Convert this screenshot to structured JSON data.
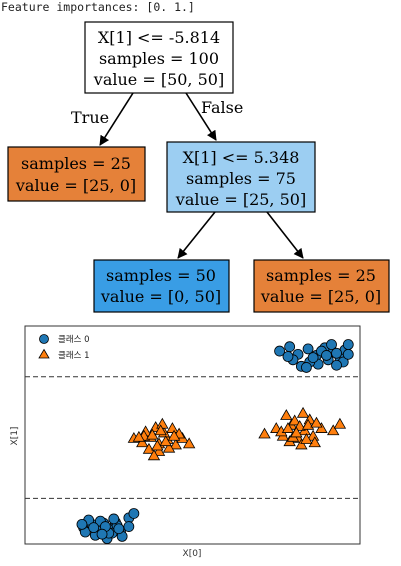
{
  "console": {
    "output_line": "Feature importances: [0. 1.]"
  },
  "tree": {
    "root": {
      "lines": [
        "X[1] <= -5.814",
        "samples = 100",
        "value = [50, 50]"
      ],
      "color": "#ffffff"
    },
    "left_leaf": {
      "lines": [
        "samples = 25",
        "value = [25, 0]"
      ],
      "color": "#e58139"
    },
    "right_node": {
      "lines": [
        "X[1] <= 5.348",
        "samples = 75",
        "value = [25, 50]"
      ],
      "color": "#9ccef2"
    },
    "right_left_leaf": {
      "lines": [
        "samples = 50",
        "value = [0, 50]"
      ],
      "color": "#399de5"
    },
    "right_right_leaf": {
      "lines": [
        "samples = 25",
        "value = [25, 0]"
      ],
      "color": "#e58139"
    },
    "edge_true_label": "True",
    "edge_false_label": "False"
  },
  "scatter": {
    "xlabel": "X[0]",
    "ylabel": "X[1]",
    "legend": [
      {
        "label": "클래스 0",
        "marker": "circle",
        "color": "#1f77b4"
      },
      {
        "label": "클래스 1",
        "marker": "triangle",
        "color": "#ff7f0e"
      }
    ],
    "split_lines_y": [
      -5.814,
      5.348
    ],
    "xlim": [
      -10,
      10
    ],
    "ylim": [
      -10,
      10
    ]
  },
  "chart_data": {
    "type": "scatter",
    "title": "",
    "xlabel": "X[0]",
    "ylabel": "X[1]",
    "xlim": [
      -10,
      10
    ],
    "ylim": [
      -10,
      10
    ],
    "grid": false,
    "legend_position": "top-left",
    "series": [
      {
        "name": "클래스 0",
        "color": "#1f77b4",
        "marker": "circle",
        "points": [
          [
            -6.5,
            -8.5
          ],
          [
            -6.0,
            -8.2
          ],
          [
            -5.6,
            -8.8
          ],
          [
            -5.3,
            -8.1
          ],
          [
            -4.9,
            -8.6
          ],
          [
            -4.6,
            -8.0
          ],
          [
            -4.3,
            -8.9
          ],
          [
            -6.2,
            -7.8
          ],
          [
            -5.8,
            -9.2
          ],
          [
            -5.1,
            -9.5
          ],
          [
            -4.8,
            -9.0
          ],
          [
            -4.5,
            -8.3
          ],
          [
            -5.5,
            -7.9
          ],
          [
            -6.4,
            -8.9
          ],
          [
            -3.8,
            -7.6
          ],
          [
            -3.5,
            -7.2
          ],
          [
            -3.8,
            -8.4
          ],
          [
            -4.2,
            -9.3
          ],
          [
            -5.0,
            -9.0
          ],
          [
            -5.9,
            -8.5
          ],
          [
            -4.4,
            -8.6
          ],
          [
            -5.2,
            -8.4
          ],
          [
            -4.7,
            -7.7
          ],
          [
            -6.6,
            -8.2
          ],
          [
            -5.4,
            -9.1
          ],
          [
            5.2,
            7.7
          ],
          [
            5.8,
            8.1
          ],
          [
            6.3,
            7.4
          ],
          [
            6.9,
            7.9
          ],
          [
            7.4,
            7.3
          ],
          [
            7.9,
            8.0
          ],
          [
            8.4,
            7.6
          ],
          [
            8.8,
            7.1
          ],
          [
            9.1,
            7.8
          ],
          [
            9.3,
            8.3
          ],
          [
            9.0,
            6.7
          ],
          [
            8.6,
            6.4
          ],
          [
            8.1,
            6.9
          ],
          [
            7.5,
            6.5
          ],
          [
            7.0,
            6.7
          ],
          [
            6.5,
            6.3
          ],
          [
            6.0,
            6.9
          ],
          [
            5.7,
            7.2
          ],
          [
            7.7,
            7.7
          ],
          [
            8.3,
            8.3
          ],
          [
            6.8,
            6.2
          ],
          [
            7.2,
            7.1
          ],
          [
            8.0,
            7.3
          ],
          [
            8.6,
            7.5
          ],
          [
            9.3,
            7.4
          ]
        ]
      },
      {
        "name": "클래스 1",
        "color": "#ff7f0e",
        "marker": "triangle",
        "points": [
          [
            -3.5,
            -0.3
          ],
          [
            -3.0,
            -0.7
          ],
          [
            -2.5,
            -0.2
          ],
          [
            -2.0,
            -0.8
          ],
          [
            -1.5,
            -0.4
          ],
          [
            -1.0,
            -0.9
          ],
          [
            -0.6,
            -0.3
          ],
          [
            -2.8,
            0.3
          ],
          [
            -2.2,
            0.7
          ],
          [
            -1.7,
            0.2
          ],
          [
            -1.2,
            0.6
          ],
          [
            -0.8,
            0.1
          ],
          [
            -2.6,
            -1.3
          ],
          [
            -2.0,
            -1.5
          ],
          [
            -1.4,
            -1.2
          ],
          [
            -2.3,
            -1.9
          ],
          [
            -1.8,
            1.0
          ],
          [
            -0.2,
            -0.8
          ],
          [
            -2.9,
            -0.1
          ],
          [
            -1.6,
            -0.6
          ],
          [
            -2.4,
            0.0
          ],
          [
            -1.9,
            0.4
          ],
          [
            -1.1,
            -0.1
          ],
          [
            -3.2,
            -0.2
          ],
          [
            -2.1,
            -1.0
          ],
          [
            4.3,
            0.1
          ],
          [
            5.0,
            0.6
          ],
          [
            5.4,
            -0.1
          ],
          [
            5.9,
            0.9
          ],
          [
            6.3,
            -0.3
          ],
          [
            6.7,
            0.4
          ],
          [
            7.2,
            -0.1
          ],
          [
            7.7,
            0.6
          ],
          [
            8.4,
            0.4
          ],
          [
            8.8,
            1.0
          ],
          [
            5.6,
            1.8
          ],
          [
            6.1,
            1.3
          ],
          [
            6.6,
            2.0
          ],
          [
            7.0,
            1.4
          ],
          [
            6.4,
            0.8
          ],
          [
            5.8,
            -0.6
          ],
          [
            6.5,
            -0.9
          ],
          [
            7.3,
            -0.7
          ],
          [
            5.3,
            0.3
          ],
          [
            6.9,
            0.9
          ],
          [
            7.4,
            1.1
          ],
          [
            6.0,
            -0.2
          ],
          [
            6.8,
            -0.4
          ],
          [
            5.7,
            0.6
          ],
          [
            6.2,
            0.2
          ]
        ]
      }
    ]
  }
}
